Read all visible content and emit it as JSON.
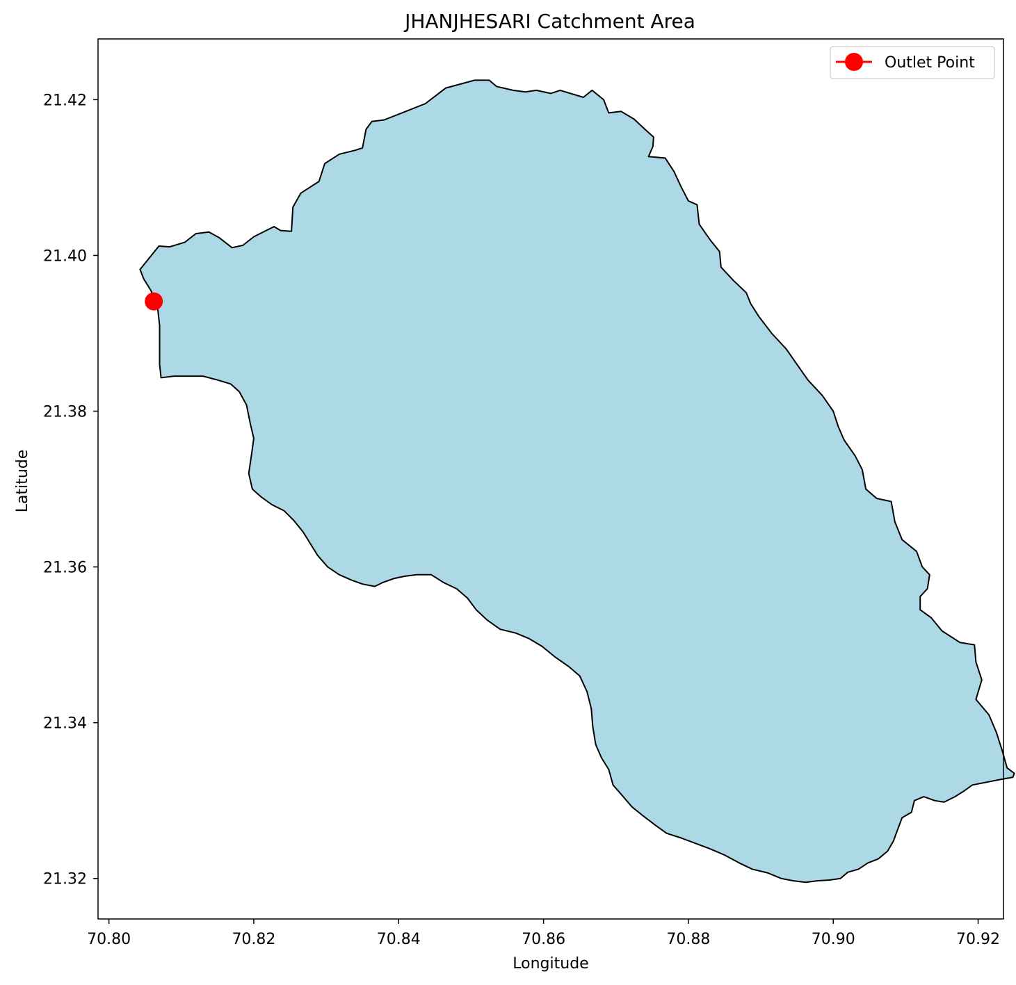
{
  "chart_data": {
    "type": "map",
    "title": "JHANJHESARI Catchment Area",
    "xlabel": "Longitude",
    "ylabel": "Latitude",
    "xlim": [
      70.7985,
      70.9235
    ],
    "ylim": [
      21.3148,
      21.4278
    ],
    "xticks": [
      70.8,
      70.82,
      70.84,
      70.86,
      70.88,
      70.9,
      70.92
    ],
    "xtick_labels": [
      "70.80",
      "70.82",
      "70.84",
      "70.86",
      "70.88",
      "70.90",
      "70.92"
    ],
    "yticks": [
      21.32,
      21.34,
      21.36,
      21.38,
      21.4,
      21.42
    ],
    "ytick_labels": [
      "21.32",
      "21.34",
      "21.36",
      "21.38",
      "21.40",
      "21.42"
    ],
    "grid": false,
    "legend": {
      "placement": "top-right",
      "entries": [
        {
          "label": "Outlet Point",
          "color": "#ff0000",
          "marker": "circle"
        }
      ]
    },
    "colors": {
      "catchment_fill": "#add8e6",
      "catchment_edge": "#000000",
      "outlet": "#ff0000"
    },
    "outlet_point": {
      "label": "Outlet Point",
      "lon": 70.8062,
      "lat": 21.3941
    },
    "catchment_boundary": [
      [
        70.8043,
        21.3982
      ],
      [
        70.8069,
        21.4012
      ],
      [
        70.8084,
        21.4011
      ],
      [
        70.8105,
        21.4017
      ],
      [
        70.812,
        21.4028
      ],
      [
        70.8138,
        21.403
      ],
      [
        70.8152,
        21.4023
      ],
      [
        70.817,
        21.401
      ],
      [
        70.8185,
        21.4013
      ],
      [
        70.82,
        21.4024
      ],
      [
        70.8228,
        21.4037
      ],
      [
        70.8237,
        21.4032
      ],
      [
        70.8252,
        21.4031
      ],
      [
        70.8254,
        21.4062
      ],
      [
        70.8265,
        21.408
      ],
      [
        70.829,
        21.4095
      ],
      [
        70.8298,
        21.4118
      ],
      [
        70.8318,
        21.413
      ],
      [
        70.834,
        21.4135
      ],
      [
        70.835,
        21.4138
      ],
      [
        70.8355,
        21.4162
      ],
      [
        70.8363,
        21.4172
      ],
      [
        70.838,
        21.4174
      ],
      [
        70.841,
        21.4185
      ],
      [
        70.8437,
        21.4195
      ],
      [
        70.8465,
        21.4215
      ],
      [
        70.8485,
        21.422
      ],
      [
        70.8505,
        21.4225
      ],
      [
        70.8525,
        21.4225
      ],
      [
        70.8535,
        21.4217
      ],
      [
        70.8558,
        21.4212
      ],
      [
        70.8575,
        21.421
      ],
      [
        70.859,
        21.4212
      ],
      [
        70.861,
        21.4208
      ],
      [
        70.8623,
        21.4212
      ],
      [
        70.8655,
        21.4203
      ],
      [
        70.8667,
        21.4212
      ],
      [
        70.8683,
        21.42
      ],
      [
        70.869,
        21.4183
      ],
      [
        70.8707,
        21.4185
      ],
      [
        70.8725,
        21.4175
      ],
      [
        70.874,
        21.4162
      ],
      [
        70.8752,
        21.4152
      ],
      [
        70.8751,
        21.414
      ],
      [
        70.8745,
        21.4127
      ],
      [
        70.8768,
        21.4125
      ],
      [
        70.878,
        21.4108
      ],
      [
        70.879,
        21.4088
      ],
      [
        70.88,
        21.407
      ],
      [
        70.8812,
        21.4065
      ],
      [
        70.8815,
        21.404
      ],
      [
        70.883,
        21.402
      ],
      [
        70.8843,
        21.4005
      ],
      [
        70.8845,
        21.3985
      ],
      [
        70.8862,
        21.3968
      ],
      [
        70.888,
        21.3952
      ],
      [
        70.8886,
        21.3938
      ],
      [
        70.8897,
        21.3922
      ],
      [
        70.8915,
        21.39
      ],
      [
        70.8935,
        21.388
      ],
      [
        70.895,
        21.386
      ],
      [
        70.8965,
        21.384
      ],
      [
        70.8985,
        21.382
      ],
      [
        70.9,
        21.38
      ],
      [
        70.9007,
        21.378
      ],
      [
        70.9015,
        21.3763
      ],
      [
        70.903,
        21.3743
      ],
      [
        70.904,
        21.3725
      ],
      [
        70.9045,
        21.37
      ],
      [
        70.906,
        21.3688
      ],
      [
        70.908,
        21.3684
      ],
      [
        70.9085,
        21.3658
      ],
      [
        70.9095,
        21.3635
      ],
      [
        70.9115,
        21.362
      ],
      [
        70.9123,
        21.36
      ],
      [
        70.9133,
        21.359
      ],
      [
        70.913,
        21.3572
      ],
      [
        70.912,
        21.3562
      ],
      [
        70.912,
        21.3545
      ],
      [
        70.9135,
        21.3535
      ],
      [
        70.915,
        21.3518
      ],
      [
        70.9175,
        21.3503
      ],
      [
        70.9195,
        21.35
      ],
      [
        70.9197,
        21.3478
      ],
      [
        70.9205,
        21.3455
      ],
      [
        70.9197,
        21.343
      ],
      [
        70.9215,
        21.341
      ],
      [
        70.9225,
        21.3388
      ],
      [
        70.9233,
        21.3365
      ],
      [
        70.924,
        21.3342
      ],
      [
        70.925,
        21.3335
      ],
      [
        70.9248,
        21.333
      ],
      [
        70.923,
        21.3327
      ],
      [
        70.9192,
        21.332
      ],
      [
        70.918,
        21.3312
      ],
      [
        70.9168,
        21.3305
      ],
      [
        70.9153,
        21.3298
      ],
      [
        70.914,
        21.33
      ],
      [
        70.9125,
        21.3305
      ],
      [
        70.9112,
        21.33
      ],
      [
        70.9108,
        21.3285
      ],
      [
        70.9095,
        21.3278
      ],
      [
        70.9087,
        21.3258
      ],
      [
        70.9083,
        21.3248
      ],
      [
        70.9075,
        21.3235
      ],
      [
        70.9062,
        21.3225
      ],
      [
        70.9048,
        21.322
      ],
      [
        70.9035,
        21.3212
      ],
      [
        70.902,
        21.3208
      ],
      [
        70.901,
        21.32
      ],
      [
        70.8995,
        21.3198
      ],
      [
        70.8978,
        21.3197
      ],
      [
        70.8962,
        21.3195
      ],
      [
        70.8945,
        21.3197
      ],
      [
        70.8928,
        21.32
      ],
      [
        70.891,
        21.3207
      ],
      [
        70.8888,
        21.3212
      ],
      [
        70.887,
        21.322
      ],
      [
        70.885,
        21.323
      ],
      [
        70.883,
        21.3238
      ],
      [
        70.881,
        21.3245
      ],
      [
        70.879,
        21.3252
      ],
      [
        70.877,
        21.3258
      ],
      [
        70.8755,
        21.3268
      ],
      [
        70.8738,
        21.328
      ],
      [
        70.8722,
        21.3292
      ],
      [
        70.871,
        21.3305
      ],
      [
        70.8696,
        21.332
      ],
      [
        70.869,
        21.334
      ],
      [
        70.868,
        21.3355
      ],
      [
        70.8672,
        21.3372
      ],
      [
        70.8668,
        21.3395
      ],
      [
        70.8666,
        21.3418
      ],
      [
        70.866,
        21.344
      ],
      [
        70.865,
        21.346
      ],
      [
        70.8635,
        21.3472
      ],
      [
        70.8615,
        21.3485
      ],
      [
        70.8598,
        21.3498
      ],
      [
        70.858,
        21.3508
      ],
      [
        70.8562,
        21.3515
      ],
      [
        70.854,
        21.352
      ],
      [
        70.8522,
        21.3532
      ],
      [
        70.8507,
        21.3545
      ],
      [
        70.8495,
        21.356
      ],
      [
        70.848,
        21.3572
      ],
      [
        70.8462,
        21.358
      ],
      [
        70.8445,
        21.359
      ],
      [
        70.8425,
        21.359
      ],
      [
        70.8408,
        21.3588
      ],
      [
        70.8393,
        21.3585
      ],
      [
        70.8378,
        21.358
      ],
      [
        70.8367,
        21.3575
      ],
      [
        70.835,
        21.3578
      ],
      [
        70.8335,
        21.3583
      ],
      [
        70.8318,
        21.359
      ],
      [
        70.8302,
        21.36
      ],
      [
        70.8288,
        21.3615
      ],
      [
        70.8278,
        21.363
      ],
      [
        70.8268,
        21.3645
      ],
      [
        70.8255,
        21.366
      ],
      [
        70.8242,
        21.3672
      ],
      [
        70.8225,
        21.368
      ],
      [
        70.821,
        21.369
      ],
      [
        70.8198,
        21.37
      ],
      [
        70.8193,
        21.372
      ],
      [
        70.8197,
        21.3745
      ],
      [
        70.82,
        21.3765
      ],
      [
        70.8195,
        21.3785
      ],
      [
        70.819,
        21.3808
      ],
      [
        70.818,
        21.3825
      ],
      [
        70.8168,
        21.3835
      ],
      [
        70.815,
        21.384
      ],
      [
        70.813,
        21.3845
      ],
      [
        70.811,
        21.3845
      ],
      [
        70.809,
        21.3845
      ],
      [
        70.8072,
        21.3843
      ],
      [
        70.807,
        21.386
      ],
      [
        70.807,
        21.3885
      ],
      [
        70.807,
        21.391
      ],
      [
        70.8067,
        21.3935
      ],
      [
        70.8058,
        21.3955
      ],
      [
        70.8048,
        21.397
      ],
      [
        70.8043,
        21.3982
      ]
    ]
  }
}
